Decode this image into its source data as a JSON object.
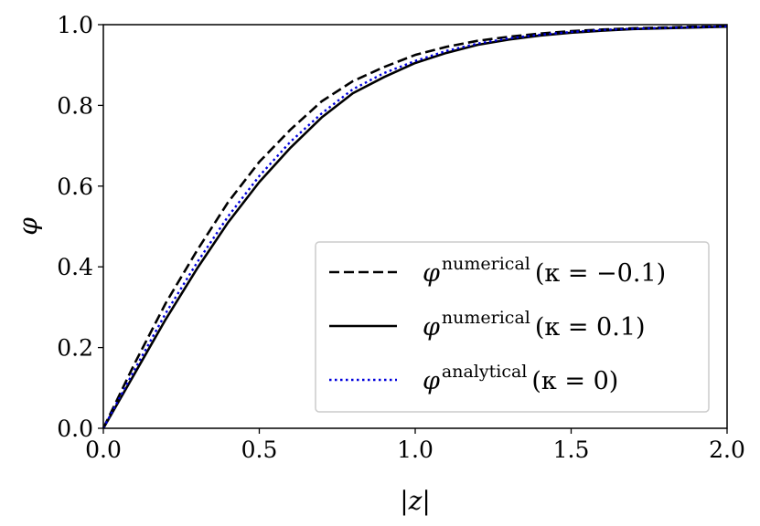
{
  "chart_data": {
    "type": "line",
    "title": "",
    "xlabel": "|z|",
    "ylabel": "φ",
    "xlim": [
      0.0,
      2.0
    ],
    "ylim": [
      0.0,
      1.0
    ],
    "xticks": [
      "0.0",
      "0.5",
      "1.0",
      "1.5",
      "2.0"
    ],
    "yticks": [
      "0.0",
      "0.2",
      "0.4",
      "0.6",
      "0.8",
      "1.0"
    ],
    "grid": false,
    "legend_position": "lower-right",
    "series": [
      {
        "name": "φ^numerical (κ = −0.1)",
        "legend_base": "φ",
        "legend_sup": "numerical",
        "legend_tail": "(κ = −0.1)",
        "style": "dashed",
        "color": "#000000",
        "x": [
          0.0,
          0.1,
          0.2,
          0.3,
          0.4,
          0.5,
          0.6,
          0.7,
          0.8,
          0.9,
          1.0,
          1.1,
          1.2,
          1.3,
          1.4,
          1.5,
          1.6,
          1.7,
          1.8,
          1.9,
          2.0
        ],
        "y": [
          0.0,
          0.16,
          0.31,
          0.44,
          0.56,
          0.66,
          0.74,
          0.81,
          0.86,
          0.895,
          0.925,
          0.945,
          0.96,
          0.97,
          0.978,
          0.984,
          0.988,
          0.991,
          0.993,
          0.995,
          0.996
        ]
      },
      {
        "name": "φ^numerical (κ = 0.1)",
        "legend_base": "φ",
        "legend_sup": "numerical",
        "legend_tail": "(κ = 0.1)",
        "style": "solid",
        "color": "#000000",
        "x": [
          0.0,
          0.1,
          0.2,
          0.3,
          0.4,
          0.5,
          0.6,
          0.7,
          0.8,
          0.9,
          1.0,
          1.1,
          1.2,
          1.3,
          1.4,
          1.5,
          1.6,
          1.7,
          1.8,
          1.9,
          2.0
        ],
        "y": [
          0.0,
          0.135,
          0.27,
          0.395,
          0.51,
          0.61,
          0.695,
          0.77,
          0.83,
          0.87,
          0.905,
          0.93,
          0.95,
          0.963,
          0.973,
          0.98,
          0.985,
          0.989,
          0.991,
          0.993,
          0.995
        ]
      },
      {
        "name": "φ^analytical (κ = 0)",
        "legend_base": "φ",
        "legend_sup": "analytical",
        "legend_tail": "(κ = 0)",
        "style": "dotted",
        "color": "#0000dd",
        "x": [
          0.0,
          0.1,
          0.2,
          0.3,
          0.4,
          0.5,
          0.6,
          0.7,
          0.8,
          0.9,
          1.0,
          1.1,
          1.2,
          1.3,
          1.4,
          1.5,
          1.6,
          1.7,
          1.8,
          1.9,
          2.0
        ],
        "y": [
          0.0,
          0.145,
          0.285,
          0.41,
          0.525,
          0.625,
          0.71,
          0.78,
          0.84,
          0.88,
          0.91,
          0.935,
          0.953,
          0.966,
          0.975,
          0.982,
          0.987,
          0.99,
          0.992,
          0.994,
          0.996
        ]
      }
    ]
  }
}
